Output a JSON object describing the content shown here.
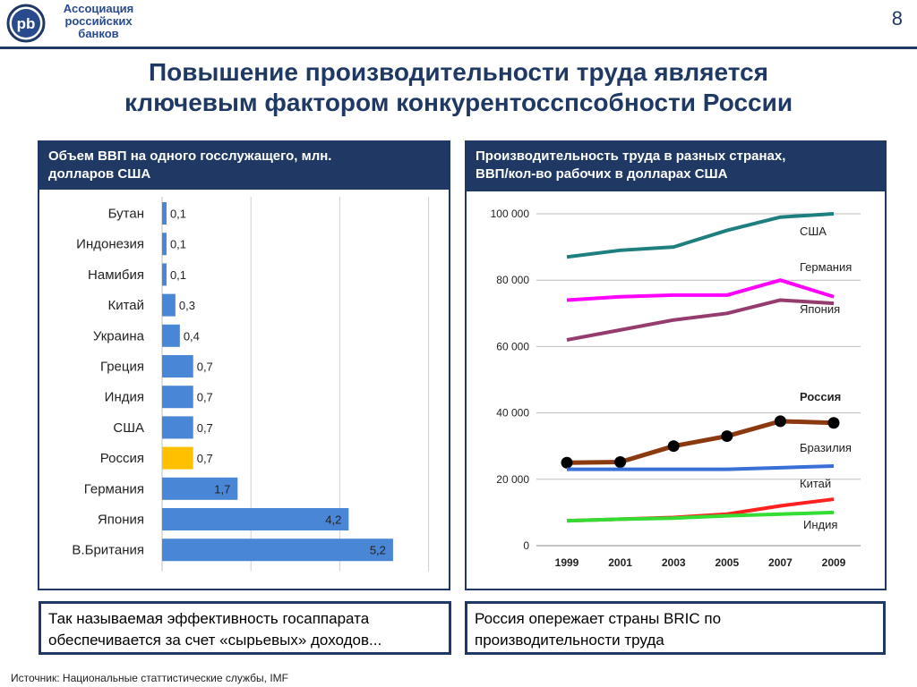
{
  "header": {
    "logo_monogram": "pb",
    "logo_lines": [
      "Ассоциация",
      "российских",
      "банков"
    ],
    "page_number": "8"
  },
  "title_lines": [
    "Повышение производительности труда является",
    "ключевым фактором конкурентосспсобности России"
  ],
  "left_panel": {
    "title_lines": [
      "Объем ВВП на одного госслужащего, млн.",
      "долларов США"
    ]
  },
  "right_panel": {
    "title_lines": [
      "Производительность труда в разных странах,",
      "ВВП/кол-во рабочих в долларах США"
    ]
  },
  "notes": {
    "left_lines": [
      "Так называемая эффективность госаппарата",
      "обеспечивается за счет «сырьевых» доходов..."
    ],
    "right_lines": [
      "Россия опережает страны BRIC по",
      "производительности труда"
    ]
  },
  "source": "Источник: Национальные статтистические службы, IMF",
  "colors": {
    "navy": "#1f3864",
    "bar": "#4a86d6",
    "bar_highlight": "#ffc000"
  },
  "chart_data": [
    {
      "type": "bar",
      "orientation": "horizontal",
      "title": "Объем ВВП на одного госслужащего, млн. долларов США",
      "categories": [
        "Бутан",
        "Индонезия",
        "Намибия",
        "Китай",
        "Украина",
        "Греция",
        "Индия",
        "США",
        "Россия",
        "Германия",
        "Япония",
        "В.Британия"
      ],
      "values": [
        0.1,
        0.1,
        0.1,
        0.3,
        0.4,
        0.7,
        0.7,
        0.7,
        0.7,
        1.7,
        4.2,
        5.2
      ],
      "value_labels": [
        "0,1",
        "0,1",
        "0,1",
        "0,3",
        "0,4",
        "0,7",
        "0,7",
        "0,7",
        "0,7",
        "1,7",
        "4,2",
        "5,2"
      ],
      "highlight": "Россия",
      "xlim": [
        0,
        6
      ],
      "grid": "vertical"
    },
    {
      "type": "line",
      "title": "Производительность труда в разных странах, ВВП/кол-во рабочих в долларах США",
      "x": [
        "1999",
        "2001",
        "2003",
        "2005",
        "2007",
        "2009"
      ],
      "ylim": [
        0,
        100000
      ],
      "yticks": [
        "0",
        "20 000",
        "40 000",
        "60 000",
        "80 000",
        "100 000"
      ],
      "grid": "horizontal",
      "series": [
        {
          "name": "США",
          "color": "#1f7f7f",
          "values": [
            87000,
            89000,
            90000,
            95000,
            99000,
            100000
          ]
        },
        {
          "name": "Германия",
          "color": "#ff00ff",
          "values": [
            74000,
            75000,
            75500,
            75500,
            80000,
            75000
          ]
        },
        {
          "name": "Япония",
          "color": "#953b6e",
          "values": [
            62000,
            65000,
            68000,
            70000,
            74000,
            73000
          ]
        },
        {
          "name": "Россия",
          "color": "#8b3a10",
          "markers": true,
          "bold_label": true,
          "values": [
            25000,
            25200,
            30000,
            33000,
            37500,
            37000
          ]
        },
        {
          "name": "Бразилия",
          "color": "#3a6fd8",
          "values": [
            23000,
            23000,
            23000,
            23000,
            23500,
            24000
          ]
        },
        {
          "name": "Китай",
          "color": "#ff2020",
          "values": [
            7500,
            8000,
            8500,
            9500,
            12000,
            14000
          ]
        },
        {
          "name": "Индия",
          "color": "#33dd33",
          "values": [
            7500,
            8000,
            8300,
            9000,
            9500,
            10000
          ]
        }
      ]
    }
  ]
}
